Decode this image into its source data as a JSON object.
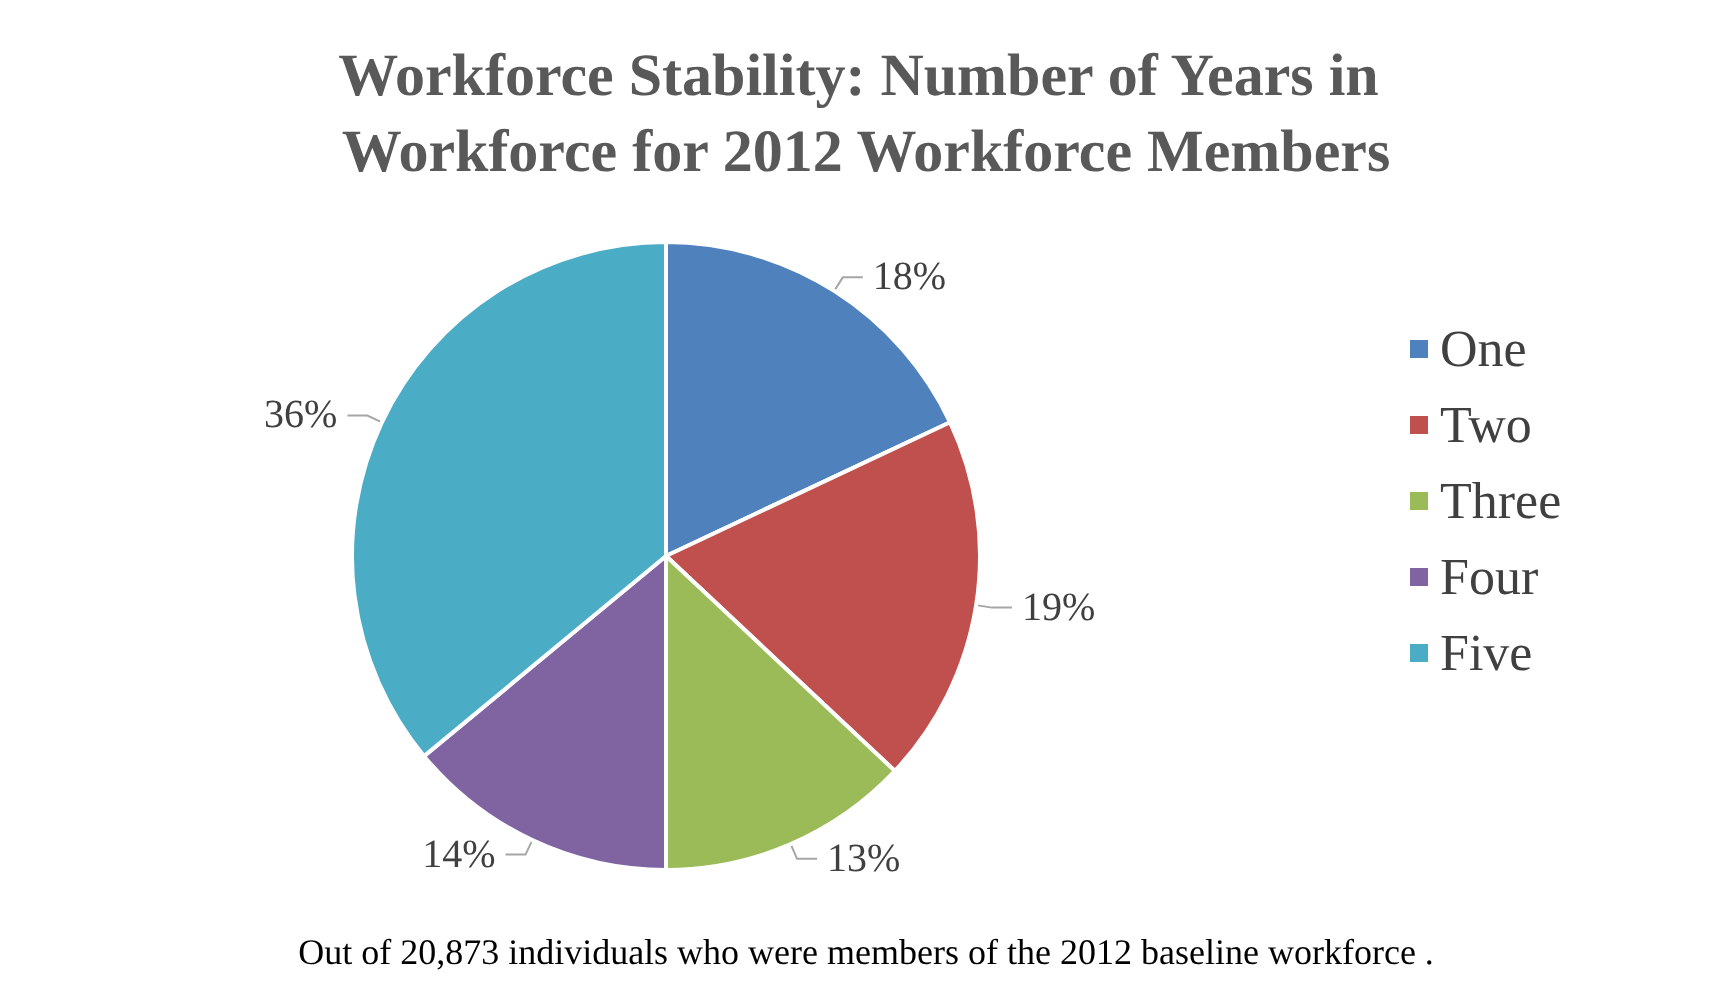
{
  "chart_data": {
    "type": "pie",
    "title": "Workforce Stability: Number of Years in Workforce for 2012 Workforce Members",
    "categories": [
      "One",
      "Two",
      "Three",
      "Four",
      "Five"
    ],
    "values": [
      18,
      19,
      13,
      14,
      36
    ],
    "value_labels": [
      "18%",
      "19%",
      "13%",
      "14%",
      "36%"
    ],
    "colors": [
      "#4f81bd",
      "#c0504d",
      "#9bbb59",
      "#8064a2",
      "#4bacc6"
    ],
    "legend": "right",
    "annotations": [
      "Out of 20,873 individuals who were members of the 2012 baseline workforce ."
    ]
  }
}
